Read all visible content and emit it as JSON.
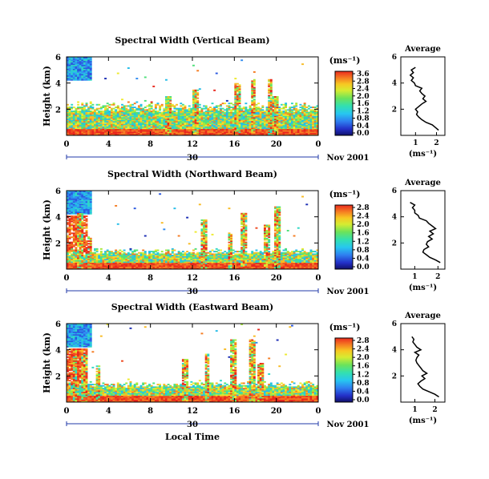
{
  "figure": {
    "xlabel": "Local Time",
    "date_label": "30",
    "month_label": "Nov 2001",
    "xticks": [
      "0",
      "4",
      "8",
      "12",
      "16",
      "20",
      "0"
    ],
    "yticks": [
      "2",
      "4",
      "6"
    ],
    "ylabel": "Height (km)",
    "unit_label": "(ms⁻¹)",
    "avg_title": "Average"
  },
  "chart_data": [
    {
      "type": "heatmap",
      "title": "Spectral Width (Vertical Beam)",
      "ylabel": "Height (km)",
      "xlim": [
        0,
        24
      ],
      "ylim": [
        0,
        6
      ],
      "colorbar": {
        "ticks": [
          "0.0",
          "0.4",
          "0.8",
          "1.2",
          "1.6",
          "2.0",
          "2.4",
          "2.8",
          "3.6"
        ],
        "range": [
          0,
          3.6
        ]
      },
      "average_profile": {
        "title": "Average",
        "xlabel": "(ms⁻¹)",
        "xticks": [
          "1",
          "2"
        ],
        "xlim": [
          0.3,
          2.4
        ],
        "yticks": [
          "2",
          "4",
          "6"
        ],
        "ylim": [
          0,
          6
        ],
        "width": [
          2.1,
          1.95,
          1.8,
          1.5,
          1.3,
          1.15,
          1.05,
          1.1,
          1.0,
          1.15,
          1.3,
          1.5,
          1.35,
          1.45,
          1.3,
          1.2,
          1.3,
          1.0,
          0.95,
          0.8,
          0.9,
          0.75,
          0.9,
          0.8,
          1.0
        ],
        "height": [
          0.4,
          0.6,
          0.8,
          1.0,
          1.2,
          1.4,
          1.6,
          1.8,
          2.0,
          2.2,
          2.4,
          2.6,
          2.8,
          3.0,
          3.2,
          3.4,
          3.6,
          3.8,
          4.0,
          4.2,
          4.4,
          4.6,
          4.8,
          5.0,
          5.2
        ]
      }
    },
    {
      "type": "heatmap",
      "title": "Spectral Width (Northward Beam)",
      "ylabel": "Height (km)",
      "xlim": [
        0,
        24
      ],
      "ylim": [
        0,
        6
      ],
      "colorbar": {
        "ticks": [
          "0.0",
          "0.4",
          "0.8",
          "1.2",
          "1.6",
          "2.0",
          "2.4",
          "2.8"
        ],
        "range": [
          0,
          2.8
        ]
      },
      "average_profile": {
        "title": "Average",
        "xlabel": "(ms⁻¹)",
        "xticks": [
          "1",
          "2"
        ],
        "xlim": [
          0.4,
          2.3
        ],
        "yticks": [
          "2",
          "4",
          "6"
        ],
        "ylim": [
          0,
          6
        ],
        "width": [
          2.1,
          1.9,
          1.65,
          1.5,
          1.35,
          1.4,
          1.6,
          1.5,
          1.55,
          1.75,
          1.6,
          1.8,
          1.65,
          1.9,
          1.75,
          1.6,
          1.5,
          1.2,
          1.15,
          1.0,
          1.0,
          0.9,
          1.0,
          0.8
        ],
        "height": [
          0.5,
          0.7,
          0.9,
          1.1,
          1.3,
          1.5,
          1.7,
          1.9,
          2.1,
          2.3,
          2.5,
          2.7,
          2.9,
          3.1,
          3.3,
          3.5,
          3.7,
          3.9,
          4.1,
          4.3,
          4.5,
          4.7,
          4.9,
          5.1
        ]
      }
    },
    {
      "type": "heatmap",
      "title": "Spectral Width (Eastward Beam)",
      "ylabel": "Height (km)",
      "xlim": [
        0,
        24
      ],
      "ylim": [
        0,
        6
      ],
      "colorbar": {
        "ticks": [
          "0.0",
          "0.4",
          "0.8",
          "1.2",
          "1.6",
          "2.0",
          "2.4",
          "2.8"
        ],
        "range": [
          0,
          2.8
        ]
      },
      "average_profile": {
        "title": "Average",
        "xlabel": "(ms⁻¹)",
        "xticks": [
          "1",
          "2"
        ],
        "xlim": [
          0.3,
          2.5
        ],
        "yticks": [
          "2",
          "4",
          "6"
        ],
        "ylim": [
          0,
          6
        ],
        "width": [
          2.2,
          2.0,
          1.7,
          1.4,
          1.25,
          1.15,
          1.3,
          1.5,
          1.35,
          1.6,
          1.4,
          1.3,
          1.2,
          1.1,
          1.05,
          1.1,
          1.2,
          1.0,
          1.3,
          1.1,
          1.0,
          0.9,
          0.95,
          0.85
        ],
        "height": [
          0.4,
          0.6,
          0.8,
          1.0,
          1.2,
          1.4,
          1.6,
          1.8,
          2.0,
          2.2,
          2.4,
          2.6,
          2.8,
          3.0,
          3.2,
          3.4,
          3.6,
          3.8,
          4.0,
          4.2,
          4.4,
          4.6,
          4.8,
          5.0
        ]
      }
    }
  ]
}
